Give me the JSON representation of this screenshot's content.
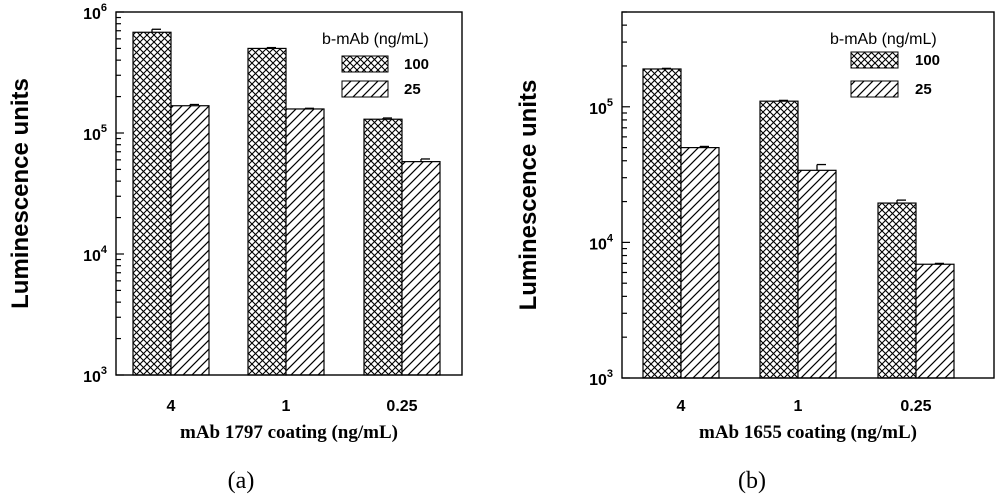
{
  "chart_data": [
    {
      "type": "bar",
      "panel_label": "(a)",
      "xlabel": "mAb 1797 coating (ng/mL)",
      "ylabel": "Luminescence units",
      "yscale": "log",
      "ylim": [
        1000,
        1000000
      ],
      "ytick_labels": [
        {
          "base": "10",
          "exp": "3"
        },
        {
          "base": "10",
          "exp": "4"
        },
        {
          "base": "10",
          "exp": "5"
        },
        {
          "base": "10",
          "exp": "6"
        }
      ],
      "categories": [
        "4",
        "1",
        "0.25"
      ],
      "legend_title": "b-mAb (ng/mL)",
      "legend_position": "top-right",
      "series": [
        {
          "name": "100",
          "pattern": "crosshatch",
          "values": [
            680000,
            500000,
            130000
          ],
          "errors": [
            40000,
            8000,
            3000
          ]
        },
        {
          "name": "25",
          "pattern": "diagonal",
          "values": [
            168000,
            158000,
            58000
          ],
          "errors": [
            4000,
            2000,
            3000
          ]
        }
      ]
    },
    {
      "type": "bar",
      "panel_label": "(b)",
      "xlabel": "mAb 1655 coating (ng/mL)",
      "ylabel": "Luminescence units",
      "yscale": "log",
      "ylim": [
        1000,
        500000
      ],
      "ytick_labels": [
        {
          "base": "10",
          "exp": "3"
        },
        {
          "base": "10",
          "exp": "4"
        },
        {
          "base": "10",
          "exp": "5"
        }
      ],
      "categories": [
        "4",
        "1",
        "0.25"
      ],
      "legend_title": "b-mAb (ng/mL)",
      "legend_position": "top-right",
      "series": [
        {
          "name": "100",
          "pattern": "crosshatch",
          "values": [
            190000,
            110000,
            19500
          ],
          "errors": [
            2000,
            1500,
            1000
          ]
        },
        {
          "name": "25",
          "pattern": "diagonal",
          "values": [
            50000,
            34000,
            6900
          ],
          "errors": [
            1000,
            3500,
            100
          ]
        }
      ]
    }
  ]
}
